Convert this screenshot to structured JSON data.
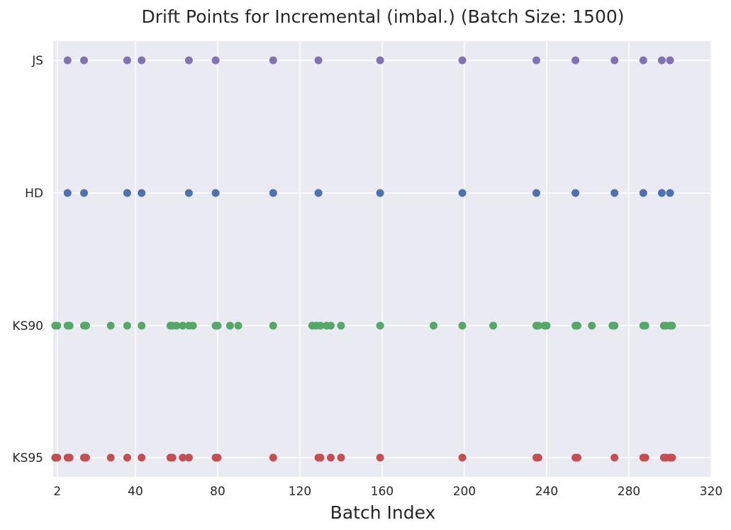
{
  "chart_data": {
    "type": "scatter",
    "title": "Drift Points for Incremental (imbal.) (Batch Size: 1500)",
    "xlabel": "Batch Index",
    "ylabel": "",
    "xlim": [
      0,
      320
    ],
    "x_ticks": [
      2,
      40,
      80,
      120,
      160,
      200,
      240,
      280,
      320
    ],
    "categories": [
      "KS95",
      "KS90",
      "HD",
      "JS"
    ],
    "grid": true,
    "series": [
      {
        "name": "KS95",
        "color": "#c44e52",
        "x": [
          1,
          2,
          7,
          8,
          15,
          16,
          28,
          36,
          43,
          57,
          58,
          63,
          66,
          79,
          80,
          107,
          129,
          130,
          135,
          140,
          159,
          199,
          235,
          236,
          254,
          255,
          273,
          287,
          288,
          297,
          298,
          300,
          301
        ]
      },
      {
        "name": "KS90",
        "color": "#55a868",
        "x": [
          1,
          2,
          7,
          8,
          15,
          16,
          28,
          36,
          43,
          57,
          58,
          60,
          63,
          66,
          68,
          79,
          80,
          86,
          90,
          107,
          126,
          128,
          130,
          133,
          135,
          140,
          159,
          185,
          199,
          214,
          235,
          236,
          239,
          240,
          254,
          255,
          262,
          272,
          273,
          287,
          288,
          297,
          298,
          300,
          301
        ]
      },
      {
        "name": "HD",
        "color": "#4c72b0",
        "x": [
          7,
          15,
          36,
          43,
          66,
          79,
          107,
          129,
          159,
          199,
          235,
          254,
          273,
          287,
          296,
          300
        ]
      },
      {
        "name": "JS",
        "color": "#8172b2",
        "x": [
          7,
          15,
          36,
          43,
          66,
          79,
          107,
          129,
          159,
          199,
          235,
          254,
          273,
          287,
          296,
          300
        ]
      }
    ]
  },
  "style": {
    "plot_background": "#eaeaf2",
    "grid_color": "#ffffff",
    "text_color": "#262626"
  }
}
